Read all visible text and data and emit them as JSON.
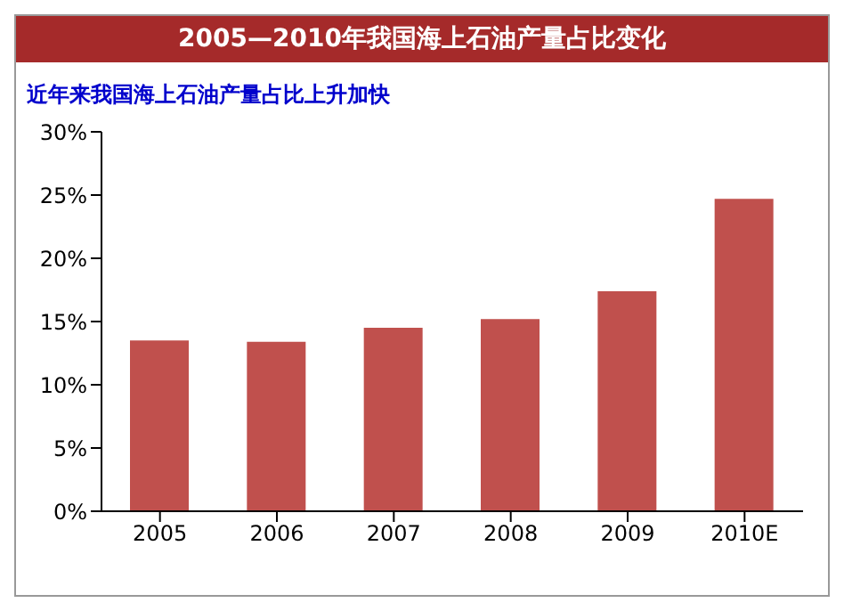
{
  "chart_data": {
    "type": "bar",
    "title": "2005—2010年我国海上石油产量占比变化",
    "subtitle": "近年来我国海上石油产量占比上升加快",
    "categories": [
      "2005",
      "2006",
      "2007",
      "2008",
      "2009",
      "2010E"
    ],
    "values": [
      13.5,
      13.4,
      14.5,
      15.2,
      17.4,
      24.7
    ],
    "color": "#c0504d",
    "ylim": [
      0,
      30
    ],
    "yticks": [
      {
        "value": 0,
        "label": "0%"
      },
      {
        "value": 5,
        "label": "5%"
      },
      {
        "value": 10,
        "label": "10%"
      },
      {
        "value": 15,
        "label": "15%"
      },
      {
        "value": 20,
        "label": "20%"
      },
      {
        "value": 25,
        "label": "25%"
      },
      {
        "value": 30,
        "label": "30%"
      }
    ],
    "grid": false,
    "legend": false
  }
}
